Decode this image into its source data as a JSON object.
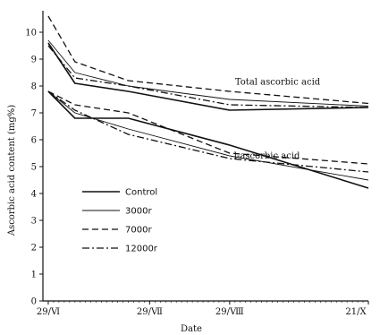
{
  "chart_data": {
    "type": "line",
    "xlabel": "Date",
    "ylabel": "Ascorbic acid content (mg%)",
    "x_positions": [
      0,
      1,
      2,
      3,
      5
    ],
    "x_ticks": [
      {
        "pos": 0,
        "label": "29/Ⅵ"
      },
      {
        "pos": 1.9,
        "label": "29/Ⅶ"
      },
      {
        "pos": 3.4,
        "label": "29/Ⅷ"
      },
      {
        "pos": 6,
        "label": "21/Ⅹ"
      }
    ],
    "xlim": [
      -0.1,
      6
    ],
    "ylim": [
      0,
      10.8
    ],
    "y_ticks": [
      0,
      1,
      2,
      3,
      4,
      5,
      6,
      7,
      8,
      9,
      10
    ],
    "annotations": [
      {
        "text": "Total ascorbic acid",
        "x": 4.3,
        "y": 8.05
      },
      {
        "text": "l-ascorbic acid",
        "x": 4.1,
        "y": 5.3
      }
    ],
    "legend": {
      "placement": "left-middle"
    },
    "series": [
      {
        "name": "Control",
        "group": "total",
        "dash": "solid",
        "x": [
          0,
          0.5,
          1.5,
          3.4,
          6
        ],
        "values": [
          9.6,
          8.1,
          7.8,
          7.1,
          7.2
        ]
      },
      {
        "name": "3000r",
        "group": "total",
        "dash": "thin",
        "x": [
          0,
          0.5,
          1.5,
          3.4,
          6
        ],
        "values": [
          9.7,
          8.5,
          8.0,
          7.5,
          7.25
        ]
      },
      {
        "name": "7000r",
        "group": "total",
        "dash": "dashed",
        "x": [
          0,
          0.5,
          1.5,
          3.4,
          6
        ],
        "values": [
          10.6,
          8.9,
          8.2,
          7.8,
          7.35
        ]
      },
      {
        "name": "12000r",
        "group": "total",
        "dash": "dashdot",
        "x": [
          0,
          0.5,
          1.5,
          3.4,
          6
        ],
        "values": [
          9.5,
          8.3,
          8.0,
          7.3,
          7.2
        ]
      },
      {
        "name": "Control",
        "group": "l",
        "dash": "solid",
        "x": [
          0,
          0.5,
          1.5,
          3.4,
          6
        ],
        "values": [
          7.8,
          6.8,
          6.8,
          5.8,
          4.2
        ]
      },
      {
        "name": "3000r",
        "group": "l",
        "dash": "thin",
        "x": [
          0,
          0.5,
          1.5,
          3.4,
          6
        ],
        "values": [
          7.8,
          7.0,
          6.4,
          5.4,
          4.5
        ]
      },
      {
        "name": "7000r",
        "group": "l",
        "dash": "dashed",
        "x": [
          0,
          0.5,
          1.5,
          3.4,
          6
        ],
        "values": [
          7.8,
          7.3,
          7.0,
          5.5,
          5.1
        ]
      },
      {
        "name": "12000r",
        "group": "l",
        "dash": "dashdot",
        "x": [
          0,
          0.5,
          1.5,
          3.4,
          6
        ],
        "values": [
          7.8,
          7.1,
          6.2,
          5.3,
          4.8
        ]
      }
    ]
  }
}
